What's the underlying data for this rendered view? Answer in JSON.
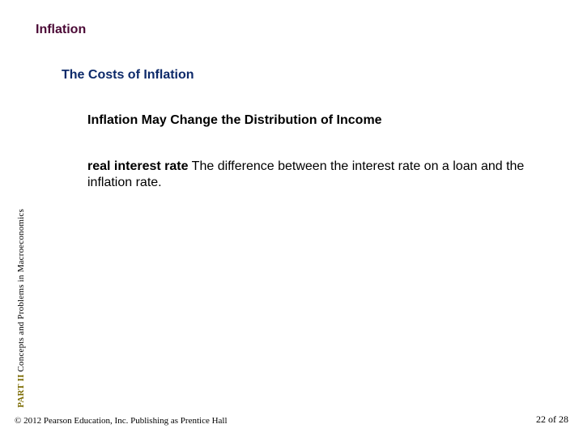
{
  "colors": {
    "heading1": "#4b0a36",
    "heading2": "#0d2a6a",
    "heading3": "#111111",
    "body": "#111111",
    "sidebar_part": "#7a6a00",
    "sidebar_text": "#111111",
    "footer": "#111111",
    "background": "#ffffff"
  },
  "typography": {
    "heading_fontsize": 16,
    "body_fontsize": 16,
    "sidebar_fontsize": 11,
    "footer_fontsize": 11,
    "heading_family": "Arial",
    "footer_family": "Times New Roman"
  },
  "heading1": "Inflation",
  "heading2": "The Costs of Inflation",
  "heading3": "Inflation May Change the Distribution of Income",
  "body": {
    "term": "real interest rate",
    "definition": "The difference between the interest rate on a loan and the inflation rate."
  },
  "sidebar": {
    "part_label": "PART II",
    "text": "Concepts and Problems in Macroeconomics"
  },
  "footer": {
    "copyright": "© 2012 Pearson Education, Inc. Publishing as Prentice Hall",
    "page_current": 22,
    "page_total": 28,
    "page_label": "22 of 28"
  }
}
